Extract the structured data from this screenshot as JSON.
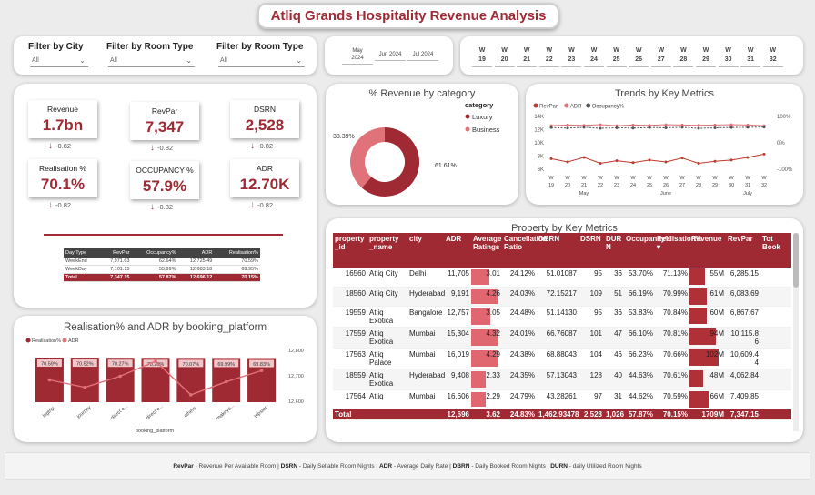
{
  "title": "Atliq Grands Hospitality Revenue Analysis",
  "filters": [
    {
      "label": "Filter by City",
      "value": "All"
    },
    {
      "label": "Filter by Room Type",
      "value": "All"
    },
    {
      "label": "Filter by Room Type",
      "value": "All"
    }
  ],
  "months": [
    "May 2024",
    "Jun 2024",
    "Jul 2024"
  ],
  "weeks": [
    "19",
    "20",
    "21",
    "22",
    "23",
    "24",
    "25",
    "26",
    "27",
    "28",
    "29",
    "30",
    "31",
    "32"
  ],
  "week_prefix": "W",
  "kpis": [
    {
      "label": "Revenue",
      "value": "1.7bn",
      "delta": "-0.82"
    },
    {
      "label": "RevPar",
      "value": "7,347",
      "delta": "-0.82"
    },
    {
      "label": "DSRN",
      "value": "2,528",
      "delta": "-0.82"
    },
    {
      "label": "Realisation %",
      "value": "70.1%",
      "delta": "-0.82"
    },
    {
      "label": "OCCUPANCY %",
      "value": "57.9%",
      "delta": "-0.82"
    },
    {
      "label": "ADR",
      "value": "12.70K",
      "delta": "-0.82"
    }
  ],
  "daytype_table": {
    "headers": [
      "Day Type",
      "RevPar",
      "Occupancy%",
      "ADR",
      "Realisation%"
    ],
    "rows": [
      [
        "WeekEnd",
        "7,971.63",
        "62.64%",
        "12,725.49",
        "70.59%"
      ],
      [
        "WeekDay",
        "7,101.15",
        "55.99%",
        "12,683.18",
        "69.95%"
      ],
      [
        "Total",
        "7,347.15",
        "57.87%",
        "12,696.12",
        "70.15%"
      ]
    ]
  },
  "donut": {
    "title": "% Revenue by category",
    "legend_title": "category",
    "slices": [
      {
        "name": "Luxury",
        "pct": 61.61,
        "label": "61.61%",
        "color": "#a02a34"
      },
      {
        "name": "Business",
        "pct": 38.39,
        "label": "38.39%",
        "color": "#e0727a"
      }
    ]
  },
  "trends": {
    "title": "Trends by Key Metrics",
    "legend": [
      "RevPar",
      "ADR",
      "Occupancy%"
    ],
    "y_left": [
      "14K",
      "12K",
      "10K",
      "8K",
      "6K"
    ],
    "y_right": [
      "100%",
      "0%",
      "-100%"
    ],
    "months": [
      "May",
      "June",
      "July"
    ],
    "week_labels": [
      "W 19",
      "W 20",
      "W 21",
      "W 22",
      "W 23",
      "W 24",
      "W 25",
      "W 26",
      "W 27",
      "W 28",
      "W 29",
      "W 30",
      "W 31",
      "W 32"
    ]
  },
  "realisation_chart": {
    "title": "Realisation% and ADR by booking_platform",
    "legend": [
      "Realisation%",
      "ADR"
    ],
    "xlabel": "booking_platform",
    "y_right": [
      "12,800",
      "12,700",
      "12,600"
    ]
  },
  "property_table": {
    "title": "Property by Key Metrics",
    "headers": [
      "property _id",
      "property _name",
      "city",
      "ADR",
      "Average Ratings",
      "Cancellation Ratio",
      "DBRN",
      "DSRN",
      "DUR N",
      "Occupancy%",
      "Realisation%",
      "Revenue",
      "RevPar",
      "Tot Book"
    ],
    "rows": [
      [
        "16560",
        "Atliq City",
        "Delhi",
        "11,705",
        "3.01",
        "24.12%",
        "51.01087",
        "95",
        "36",
        "53.70%",
        "71.13%",
        "55M",
        "6,285.15",
        ""
      ],
      [
        "18560",
        "Atliq City",
        "Hyderabad",
        "9,191",
        "4.26",
        "24.03%",
        "72.15217",
        "109",
        "51",
        "66.19%",
        "70.99%",
        "61M",
        "6,083.69",
        ""
      ],
      [
        "19559",
        "Atliq Exotica",
        "Bangalore",
        "12,757",
        "3.05",
        "24.48%",
        "51.14130",
        "95",
        "36",
        "53.83%",
        "70.84%",
        "60M",
        "6,867.67",
        ""
      ],
      [
        "17559",
        "Atliq Exotica",
        "Mumbai",
        "15,304",
        "4.32",
        "24.01%",
        "66.76087",
        "101",
        "47",
        "66.10%",
        "70.81%",
        "94M",
        "10,115.8 6",
        ""
      ],
      [
        "17563",
        "Atliq Palace",
        "Mumbai",
        "16,019",
        "4.29",
        "24.38%",
        "68.88043",
        "104",
        "46",
        "66.23%",
        "70.66%",
        "102M",
        "10,609.4 4",
        ""
      ],
      [
        "18559",
        "Atliq Exotica",
        "Hyderabad",
        "9,408",
        "2.33",
        "24.35%",
        "57.13043",
        "128",
        "40",
        "44.63%",
        "70.61%",
        "48M",
        "4,062.84",
        ""
      ],
      [
        "17564",
        "Atliq",
        "Mumbai",
        "16,606",
        "2.29",
        "24.79%",
        "43.28261",
        "97",
        "31",
        "44.62%",
        "70.59%",
        "66M",
        "7,409.85",
        ""
      ]
    ],
    "total": [
      "Total",
      "",
      "",
      "12,696",
      "3.62",
      "24.83%",
      "1,462.93478",
      "2,528",
      "1,026",
      "57.87%",
      "70.15%",
      "1709M",
      "7,347.15",
      ""
    ]
  },
  "footer": [
    {
      "term": "RevPar",
      "def": " - Revenue Per Available Room"
    },
    {
      "term": "DSRN",
      "def": " - Daily Sellable Room Nights"
    },
    {
      "term": "ADR",
      "def": " - Average Daily Rate"
    },
    {
      "term": "DBRN",
      "def": " - Daily Booked Room Nights"
    },
    {
      "term": "DURN",
      "def": " - daily Utilized Room Nights"
    }
  ],
  "chart_data": [
    {
      "type": "pie",
      "title": "% Revenue by category",
      "categories": [
        "Luxury",
        "Business"
      ],
      "values": [
        61.61,
        38.39
      ]
    },
    {
      "type": "line",
      "title": "Trends by Key Metrics",
      "x": [
        "W 19",
        "W 20",
        "W 21",
        "W 22",
        "W 23",
        "W 24",
        "W 25",
        "W 26",
        "W 27",
        "W 28",
        "W 29",
        "W 30",
        "W 31",
        "W 32"
      ],
      "series": [
        {
          "name": "RevPar",
          "values": [
            7600,
            7100,
            7800,
            6900,
            7300,
            7000,
            7400,
            7100,
            7700,
            6900,
            7200,
            7400,
            7800,
            8300
          ]
        },
        {
          "name": "ADR",
          "values": [
            12600,
            12700,
            12650,
            12750,
            12600,
            12700,
            12650,
            12750,
            12700,
            12650,
            12700,
            12750,
            12700,
            12600
          ]
        },
        {
          "name": "Occupancy%",
          "values": [
            58,
            56,
            59,
            55,
            57,
            56,
            58,
            57,
            59,
            55,
            57,
            58,
            59,
            60
          ]
        }
      ],
      "ylim": [
        6000,
        14000
      ],
      "y2lim": [
        -100,
        100
      ]
    },
    {
      "type": "bar",
      "title": "Realisation% and ADR by booking_platform",
      "xlabel": "booking_platform",
      "categories": [
        "logtrip",
        "journey",
        "direct o...",
        "direct o...",
        "others",
        "makeyo...",
        "tripster"
      ],
      "series": [
        {
          "name": "Realisation%",
          "values": [
            70.59,
            70.52,
            70.27,
            70.2,
            70.07,
            69.99,
            69.83
          ],
          "labels": [
            "70.59%",
            "70.52%",
            "70.27%",
            "70.20%",
            "70.07%",
            "69.99%",
            "69.83%"
          ]
        },
        {
          "name": "ADR",
          "values": [
            12700,
            12660,
            12720,
            12800,
            12620,
            12690,
            12750
          ]
        }
      ],
      "y2lim": [
        12600,
        12800
      ]
    }
  ]
}
